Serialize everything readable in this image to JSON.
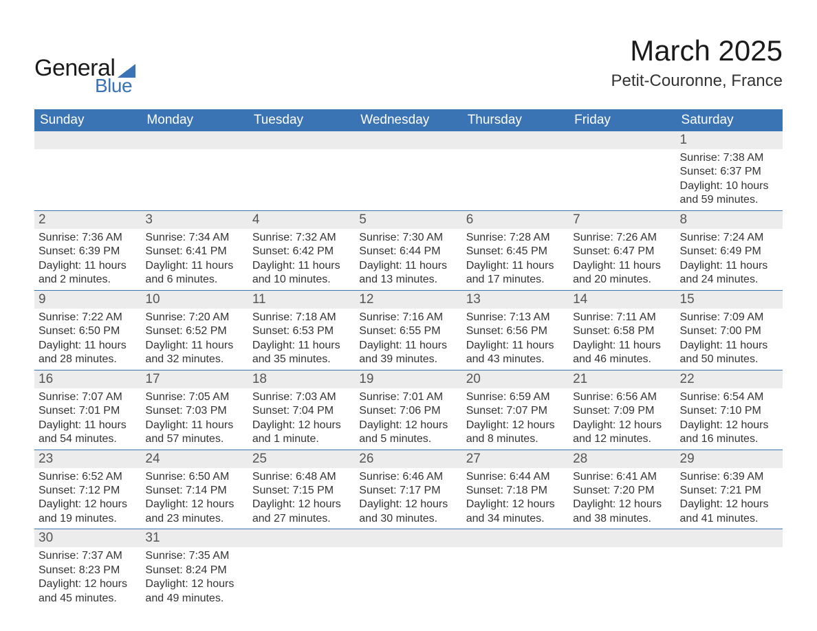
{
  "brand": {
    "word1": "General",
    "word2": "Blue",
    "accent_color": "#3a74b4"
  },
  "title": {
    "month": "March 2025",
    "location": "Petit-Couronne, France"
  },
  "colors": {
    "header_bg": "#3a74b4",
    "header_text": "#ffffff",
    "daynum_bg": "#ececec",
    "row_border": "#3a74b4",
    "body_text": "#333333",
    "daynum_text": "#555555",
    "page_bg": "#ffffff"
  },
  "fonts": {
    "family": "Arial, Helvetica, sans-serif",
    "month_title_size_pt": 32,
    "location_size_pt": 18,
    "weekday_size_pt": 14,
    "daynum_size_pt": 14,
    "detail_size_pt": 12
  },
  "weekdays": [
    "Sunday",
    "Monday",
    "Tuesday",
    "Wednesday",
    "Thursday",
    "Friday",
    "Saturday"
  ],
  "labels": {
    "sunrise": "Sunrise:",
    "sunset": "Sunset:",
    "daylight": "Daylight:"
  },
  "weeks": [
    [
      null,
      null,
      null,
      null,
      null,
      null,
      {
        "n": "1",
        "sunrise": "7:38 AM",
        "sunset": "6:37 PM",
        "daylight": "10 hours and 59 minutes."
      }
    ],
    [
      {
        "n": "2",
        "sunrise": "7:36 AM",
        "sunset": "6:39 PM",
        "daylight": "11 hours and 2 minutes."
      },
      {
        "n": "3",
        "sunrise": "7:34 AM",
        "sunset": "6:41 PM",
        "daylight": "11 hours and 6 minutes."
      },
      {
        "n": "4",
        "sunrise": "7:32 AM",
        "sunset": "6:42 PM",
        "daylight": "11 hours and 10 minutes."
      },
      {
        "n": "5",
        "sunrise": "7:30 AM",
        "sunset": "6:44 PM",
        "daylight": "11 hours and 13 minutes."
      },
      {
        "n": "6",
        "sunrise": "7:28 AM",
        "sunset": "6:45 PM",
        "daylight": "11 hours and 17 minutes."
      },
      {
        "n": "7",
        "sunrise": "7:26 AM",
        "sunset": "6:47 PM",
        "daylight": "11 hours and 20 minutes."
      },
      {
        "n": "8",
        "sunrise": "7:24 AM",
        "sunset": "6:49 PM",
        "daylight": "11 hours and 24 minutes."
      }
    ],
    [
      {
        "n": "9",
        "sunrise": "7:22 AM",
        "sunset": "6:50 PM",
        "daylight": "11 hours and 28 minutes."
      },
      {
        "n": "10",
        "sunrise": "7:20 AM",
        "sunset": "6:52 PM",
        "daylight": "11 hours and 32 minutes."
      },
      {
        "n": "11",
        "sunrise": "7:18 AM",
        "sunset": "6:53 PM",
        "daylight": "11 hours and 35 minutes."
      },
      {
        "n": "12",
        "sunrise": "7:16 AM",
        "sunset": "6:55 PM",
        "daylight": "11 hours and 39 minutes."
      },
      {
        "n": "13",
        "sunrise": "7:13 AM",
        "sunset": "6:56 PM",
        "daylight": "11 hours and 43 minutes."
      },
      {
        "n": "14",
        "sunrise": "7:11 AM",
        "sunset": "6:58 PM",
        "daylight": "11 hours and 46 minutes."
      },
      {
        "n": "15",
        "sunrise": "7:09 AM",
        "sunset": "7:00 PM",
        "daylight": "11 hours and 50 minutes."
      }
    ],
    [
      {
        "n": "16",
        "sunrise": "7:07 AM",
        "sunset": "7:01 PM",
        "daylight": "11 hours and 54 minutes."
      },
      {
        "n": "17",
        "sunrise": "7:05 AM",
        "sunset": "7:03 PM",
        "daylight": "11 hours and 57 minutes."
      },
      {
        "n": "18",
        "sunrise": "7:03 AM",
        "sunset": "7:04 PM",
        "daylight": "12 hours and 1 minute."
      },
      {
        "n": "19",
        "sunrise": "7:01 AM",
        "sunset": "7:06 PM",
        "daylight": "12 hours and 5 minutes."
      },
      {
        "n": "20",
        "sunrise": "6:59 AM",
        "sunset": "7:07 PM",
        "daylight": "12 hours and 8 minutes."
      },
      {
        "n": "21",
        "sunrise": "6:56 AM",
        "sunset": "7:09 PM",
        "daylight": "12 hours and 12 minutes."
      },
      {
        "n": "22",
        "sunrise": "6:54 AM",
        "sunset": "7:10 PM",
        "daylight": "12 hours and 16 minutes."
      }
    ],
    [
      {
        "n": "23",
        "sunrise": "6:52 AM",
        "sunset": "7:12 PM",
        "daylight": "12 hours and 19 minutes."
      },
      {
        "n": "24",
        "sunrise": "6:50 AM",
        "sunset": "7:14 PM",
        "daylight": "12 hours and 23 minutes."
      },
      {
        "n": "25",
        "sunrise": "6:48 AM",
        "sunset": "7:15 PM",
        "daylight": "12 hours and 27 minutes."
      },
      {
        "n": "26",
        "sunrise": "6:46 AM",
        "sunset": "7:17 PM",
        "daylight": "12 hours and 30 minutes."
      },
      {
        "n": "27",
        "sunrise": "6:44 AM",
        "sunset": "7:18 PM",
        "daylight": "12 hours and 34 minutes."
      },
      {
        "n": "28",
        "sunrise": "6:41 AM",
        "sunset": "7:20 PM",
        "daylight": "12 hours and 38 minutes."
      },
      {
        "n": "29",
        "sunrise": "6:39 AM",
        "sunset": "7:21 PM",
        "daylight": "12 hours and 41 minutes."
      }
    ],
    [
      {
        "n": "30",
        "sunrise": "7:37 AM",
        "sunset": "8:23 PM",
        "daylight": "12 hours and 45 minutes."
      },
      {
        "n": "31",
        "sunrise": "7:35 AM",
        "sunset": "8:24 PM",
        "daylight": "12 hours and 49 minutes."
      },
      null,
      null,
      null,
      null,
      null
    ]
  ]
}
